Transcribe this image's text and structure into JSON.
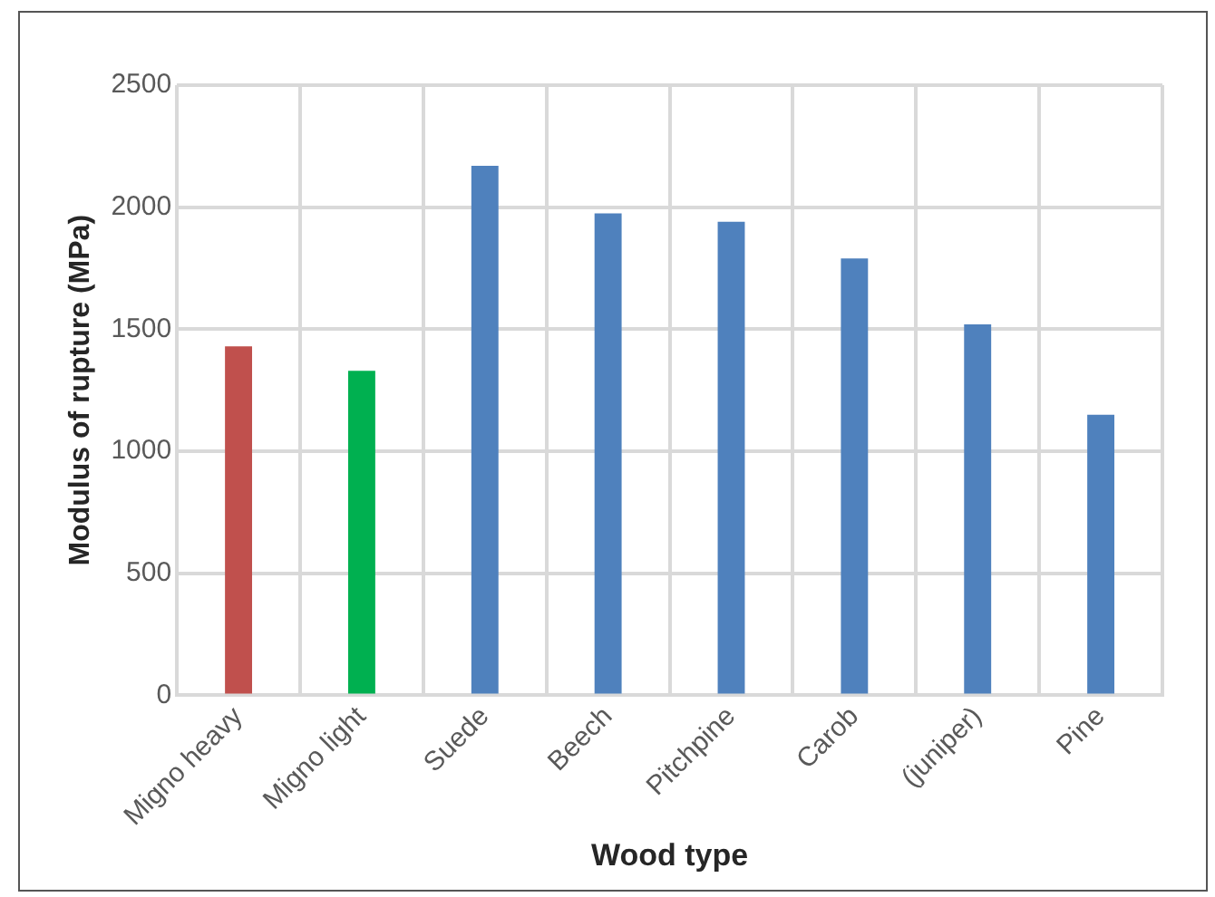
{
  "chart_data": {
    "type": "bar",
    "xlabel": "Wood type",
    "ylabel": "Modulus of rupture (MPa)",
    "categories": [
      "Migno heavy",
      "Migno light",
      "Suede",
      "Beech",
      "Pitchpine",
      "Carob",
      "(juniper)",
      "Pine"
    ],
    "values": [
      1430,
      1330,
      2170,
      1975,
      1940,
      1790,
      1520,
      1150
    ],
    "colors": [
      "#c0504d",
      "#00b050",
      "#4f81bd",
      "#4f81bd",
      "#4f81bd",
      "#4f81bd",
      "#4f81bd",
      "#4f81bd"
    ],
    "ylim": [
      0,
      2500
    ],
    "yticks": [
      0,
      500,
      1000,
      1500,
      2000,
      2500
    ],
    "grid": true
  }
}
